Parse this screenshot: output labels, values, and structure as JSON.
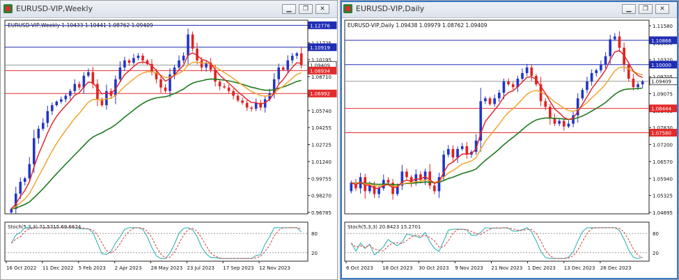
{
  "colors": {
    "bull": "#2234c8",
    "bear": "#e0211f",
    "ma_fast": "#e5262a",
    "ma_mid": "#f1a52d",
    "ma_slow": "#1d7a1d",
    "stoch_main": "#34b3b3",
    "stoch_signal": "#e23a3a",
    "hline_blue": "#1f2db5",
    "hline_red": "#e32b2b",
    "price_tag_blue": "#1f2db5",
    "price_tag_red": "#e32b2b"
  },
  "windows": [
    {
      "title": "EURUSD-VIP,Weekly",
      "header": "EURUSD-VIP,Weekly  1.10433 1.10441 1.08762 1.09409",
      "stoch_label": "Stoch(5,3,3) 71.5715 69.6624",
      "buttons": {
        "minimize": "▁",
        "restore": "❐",
        "close": "✕"
      },
      "price_scale": [
        "1.13210",
        "1.11725",
        "1.10195",
        "1.08710",
        "1.07180",
        "1.05740",
        "1.04255",
        "1.02725",
        "1.01240",
        "0.99755",
        "0.98270",
        "0.96785"
      ],
      "tags": [
        {
          "label": "1.12776",
          "value": 1.12776,
          "kind": "blue"
        },
        {
          "label": "1.10919",
          "value": 1.10919,
          "kind": "blue"
        },
        {
          "label": "1.09409",
          "value": 1.09409,
          "kind": "gray"
        },
        {
          "label": "1.08934",
          "value": 1.08934,
          "kind": "red"
        },
        {
          "label": "1.06992",
          "value": 1.06992,
          "kind": "red"
        }
      ],
      "stoch_levels": [
        "80",
        "20"
      ],
      "dates": [
        "16 Oct 2022",
        "11 Dec 2022",
        "5 Feb 2023",
        "2 Apr 2023",
        "28 May 2023",
        "23 Jul 2023",
        "17 Sep 2023",
        "12 Nov 2023"
      ]
    },
    {
      "title": "EURUSD-VIP,Daily",
      "header": "EURUSD-VIP,Daily  1.09438 1.09979 1.08762 1.09409",
      "stoch_label": "Stoch(5,3,3) 20.8423 15.2701",
      "buttons": {
        "minimize": "▁",
        "restore": "❐",
        "close": "✕"
      },
      "price_scale": [
        "1.11580",
        "1.11050",
        "1.10320",
        "1.09705",
        "1.09075",
        "1.08460",
        "1.07830",
        "1.07200",
        "1.06570",
        "1.05940",
        "1.05325",
        "1.04695"
      ],
      "tags": [
        {
          "label": "1.10866",
          "value": 1.10866,
          "kind": "blue"
        },
        {
          "label": "1.10000",
          "value": 1.1,
          "kind": "blue"
        },
        {
          "label": "1.09409",
          "value": 1.09409,
          "kind": "gray"
        },
        {
          "label": "1.08444",
          "value": 1.08444,
          "kind": "red"
        },
        {
          "label": "1.07580",
          "value": 1.0758,
          "kind": "red"
        }
      ],
      "stoch_levels": [
        "80",
        "20"
      ],
      "dates": [
        "6 Oct 2023",
        "18 Oct 2023",
        "30 Oct 2023",
        "9 Nov 2023",
        "21 Nov 2023",
        "1 Dec 2023",
        "13 Dec 2023",
        "26 Dec 2023"
      ]
    }
  ],
  "chart_data": [
    {
      "type": "candlestick",
      "title": "EURUSD-VIP,Weekly",
      "ylim": [
        0.96785,
        1.1321
      ],
      "closes": [
        0.972,
        0.985,
        0.995,
        0.998,
        1.01,
        1.032,
        1.04,
        1.045,
        1.055,
        1.06,
        1.063,
        1.065,
        1.068,
        1.072,
        1.078,
        1.075,
        1.085,
        1.088,
        1.078,
        1.065,
        1.06,
        1.072,
        1.068,
        1.082,
        1.092,
        1.098,
        1.096,
        1.1,
        1.102,
        1.098,
        1.095,
        1.088,
        1.082,
        1.075,
        1.072,
        1.086,
        1.092,
        1.098,
        1.102,
        1.12,
        1.108,
        1.098,
        1.092,
        1.096,
        1.09,
        1.08,
        1.076,
        1.075,
        1.072,
        1.068,
        1.064,
        1.062,
        1.058,
        1.057,
        1.062,
        1.058,
        1.065,
        1.07,
        1.082,
        1.092,
        1.09,
        1.098,
        1.102,
        1.104,
        1.094
      ],
      "ma_fast_last": 1.088,
      "ma_mid_last": 1.079,
      "ma_slow_last": 1.091,
      "stochastic": {
        "k": 71.5715,
        "d": 69.6624
      }
    },
    {
      "type": "candlestick",
      "title": "EURUSD-VIP,Daily",
      "ylim": [
        1.04695,
        1.1158
      ],
      "closes": [
        1.058,
        1.056,
        1.06,
        1.055,
        1.057,
        1.054,
        1.056,
        1.059,
        1.058,
        1.054,
        1.057,
        1.062,
        1.06,
        1.058,
        1.061,
        1.059,
        1.062,
        1.057,
        1.055,
        1.06,
        1.068,
        1.07,
        1.067,
        1.07,
        1.071,
        1.068,
        1.069,
        1.073,
        1.087,
        1.088,
        1.086,
        1.088,
        1.09,
        1.094,
        1.093,
        1.092,
        1.095,
        1.097,
        1.099,
        1.096,
        1.093,
        1.087,
        1.085,
        1.081,
        1.079,
        1.08,
        1.078,
        1.079,
        1.082,
        1.088,
        1.091,
        1.094,
        1.097,
        1.098,
        1.1,
        1.103,
        1.109,
        1.11,
        1.106,
        1.1,
        1.095,
        1.092,
        1.093,
        1.094
      ],
      "ma_fast_last": 1.094,
      "ma_mid_last": 1.087,
      "ma_slow_last": 1.078,
      "stochastic": {
        "k": 20.8423,
        "d": 15.2701
      }
    }
  ]
}
